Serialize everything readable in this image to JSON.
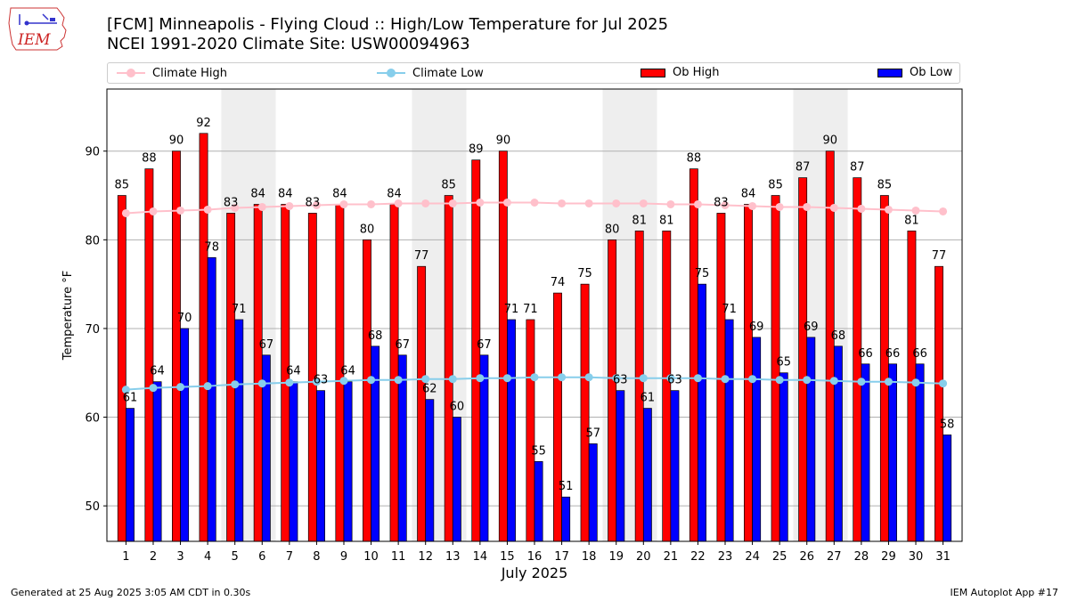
{
  "header": {
    "title_line1": "[FCM] Minneapolis - Flying Cloud :: High/Low Temperature for Jul 2025",
    "title_line2": "NCEI 1991-2020 Climate Site: USW00094963",
    "logo_text": "IEM"
  },
  "footer": {
    "left": "Generated at 25 Aug 2025 3:05 AM CDT in 0.30s",
    "right": "IEM Autoplot App #17"
  },
  "legend": {
    "climate_high": "Climate High",
    "climate_low": "Climate Low",
    "ob_high": "Ob High",
    "ob_low": "Ob Low"
  },
  "colors": {
    "ob_high": "#ff0000",
    "ob_low": "#0000ff",
    "climate_high": "#ffc0cb",
    "climate_low": "#87ceeb",
    "weekend_shade": "#eeeeee",
    "grid": "#b0b0b0"
  },
  "chart_data": {
    "type": "bar",
    "xlabel": "July 2025",
    "ylabel": "Temperature °F",
    "ylim": [
      46,
      97
    ],
    "yticks": [
      50,
      60,
      70,
      80,
      90
    ],
    "grid": "horizontal",
    "legend_placement": "top",
    "categories": [
      "1",
      "2",
      "3",
      "4",
      "5",
      "6",
      "7",
      "8",
      "9",
      "10",
      "11",
      "12",
      "13",
      "14",
      "15",
      "16",
      "17",
      "18",
      "19",
      "20",
      "21",
      "22",
      "23",
      "24",
      "25",
      "26",
      "27",
      "28",
      "29",
      "30",
      "31"
    ],
    "shaded_weekend_days": [
      [
        5,
        6
      ],
      [
        12,
        13
      ],
      [
        19,
        20
      ],
      [
        26,
        27
      ]
    ],
    "series": [
      {
        "name": "Ob High",
        "kind": "bar",
        "values": [
          85,
          88,
          90,
          92,
          83,
          84,
          84,
          83,
          84,
          80,
          84,
          77,
          85,
          89,
          90,
          71,
          74,
          75,
          80,
          81,
          81,
          88,
          83,
          84,
          85,
          87,
          90,
          87,
          85,
          81,
          77
        ]
      },
      {
        "name": "Ob Low",
        "kind": "bar",
        "values": [
          61,
          64,
          70,
          78,
          71,
          67,
          64,
          63,
          64,
          68,
          67,
          62,
          60,
          67,
          71,
          55,
          51,
          57,
          63,
          61,
          63,
          75,
          71,
          69,
          65,
          69,
          68,
          66,
          66,
          66,
          58
        ]
      },
      {
        "name": "Climate High",
        "kind": "line",
        "values": [
          83.0,
          83.2,
          83.3,
          83.4,
          83.6,
          83.7,
          83.8,
          83.9,
          84.0,
          84.0,
          84.1,
          84.1,
          84.1,
          84.2,
          84.2,
          84.2,
          84.1,
          84.1,
          84.1,
          84.1,
          84.0,
          84.0,
          83.9,
          83.8,
          83.7,
          83.7,
          83.6,
          83.5,
          83.4,
          83.3,
          83.2
        ]
      },
      {
        "name": "Climate Low",
        "kind": "line",
        "values": [
          63.1,
          63.3,
          63.4,
          63.5,
          63.7,
          63.8,
          63.9,
          64.0,
          64.1,
          64.2,
          64.2,
          64.3,
          64.3,
          64.4,
          64.4,
          64.5,
          64.5,
          64.5,
          64.4,
          64.4,
          64.4,
          64.4,
          64.3,
          64.3,
          64.2,
          64.2,
          64.1,
          64.0,
          64.0,
          63.9,
          63.8
        ]
      }
    ]
  }
}
